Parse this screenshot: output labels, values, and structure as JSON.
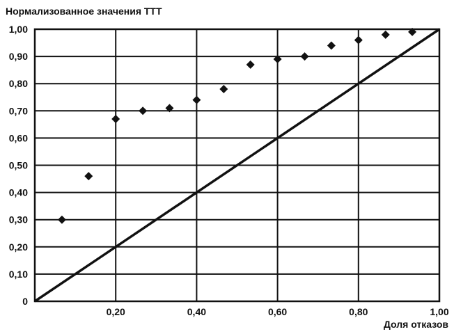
{
  "chart_data": {
    "type": "scatter",
    "title": "Нормализованное значения ТТТ",
    "xlabel": "Доля отказов",
    "ylabel": "",
    "xlim": [
      0,
      1.0
    ],
    "ylim": [
      0,
      1.0
    ],
    "grid": true,
    "x_ticks": [
      {
        "value": 0.2,
        "label": "0,20"
      },
      {
        "value": 0.4,
        "label": "0,40"
      },
      {
        "value": 0.6,
        "label": "0,60"
      },
      {
        "value": 0.8,
        "label": "0,80"
      },
      {
        "value": 1.0,
        "label": "1,00"
      }
    ],
    "y_ticks": [
      {
        "value": 0,
        "label": "0"
      },
      {
        "value": 0.1,
        "label": "0,10"
      },
      {
        "value": 0.2,
        "label": "0,20"
      },
      {
        "value": 0.3,
        "label": "0,30"
      },
      {
        "value": 0.4,
        "label": "0,40"
      },
      {
        "value": 0.5,
        "label": "0,50"
      },
      {
        "value": 0.6,
        "label": "0,60"
      },
      {
        "value": 0.7,
        "label": "0,70"
      },
      {
        "value": 0.8,
        "label": "0,80"
      },
      {
        "value": 0.9,
        "label": "0,90"
      },
      {
        "value": 1.0,
        "label": "1,00"
      }
    ],
    "series": [
      {
        "x": [
          0.067,
          0.133,
          0.2,
          0.267,
          0.333,
          0.4,
          0.467,
          0.533,
          0.6,
          0.667,
          0.733,
          0.8,
          0.867,
          0.933
        ],
        "y": [
          0.3,
          0.46,
          0.67,
          0.7,
          0.71,
          0.74,
          0.78,
          0.87,
          0.89,
          0.9,
          0.94,
          0.96,
          0.98,
          0.99
        ]
      }
    ],
    "reference_line": {
      "x": [
        0,
        1.0
      ],
      "y": [
        0,
        1.0
      ]
    }
  }
}
